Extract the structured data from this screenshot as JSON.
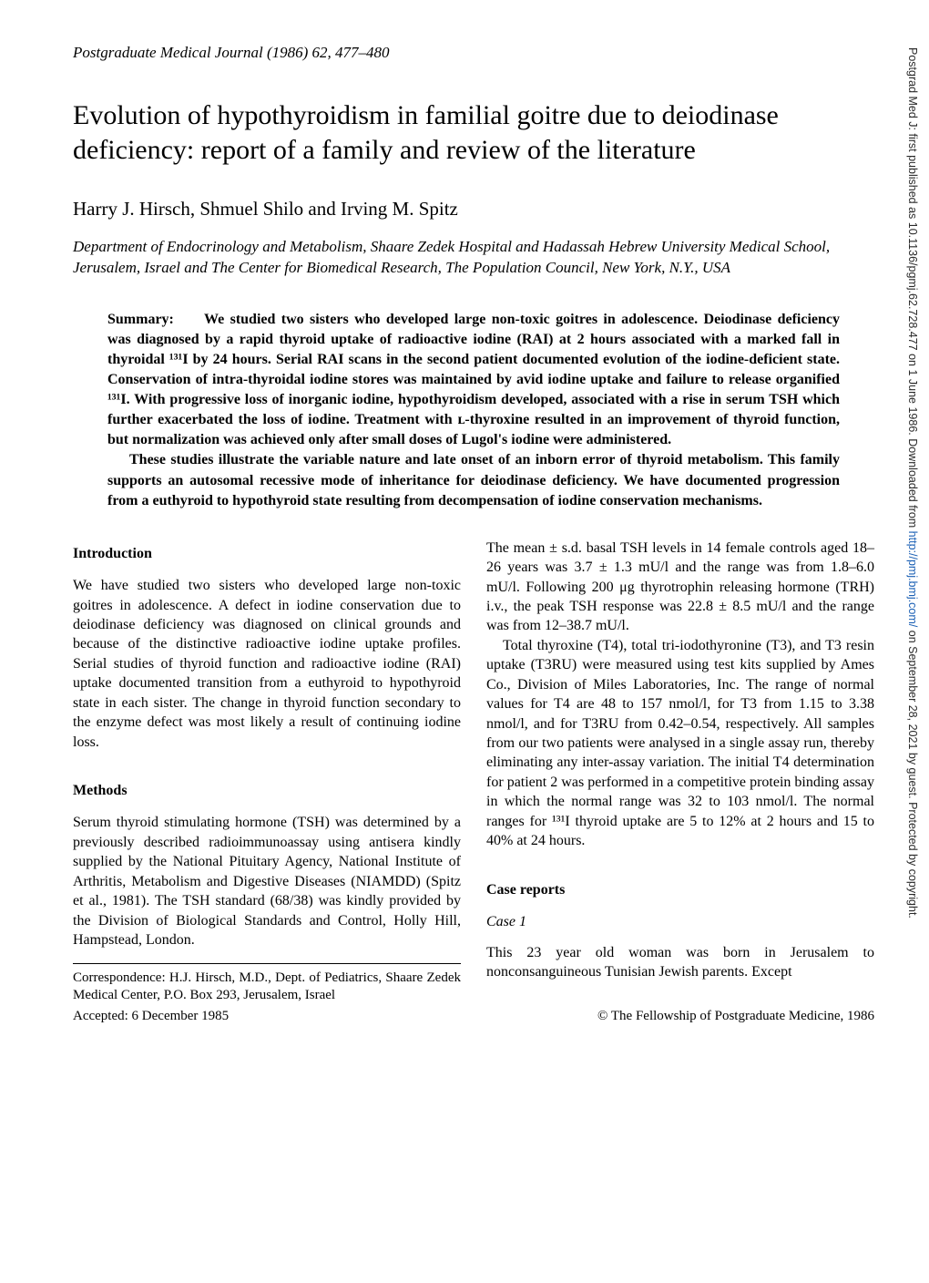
{
  "header": {
    "journal": "Postgraduate Medical Journal (1986) 62, 477–480"
  },
  "title": "Evolution of hypothyroidism in familial goitre due to deiodinase deficiency: report of a family and review of the literature",
  "authors": "Harry J. Hirsch, Shmuel Shilo and Irving M. Spitz",
  "affiliation": "Department of Endocrinology and Metabolism, Shaare Zedek Hospital and Hadassah Hebrew University Medical School, Jerusalem, Israel and The Center for Biomedical Research, The Population Council, New York, N.Y., USA",
  "summary": {
    "lead": "Summary:",
    "p1": "We studied two sisters who developed large non-toxic goitres in adolescence. Deiodinase deficiency was diagnosed by a rapid thyroid uptake of radioactive iodine (RAI) at 2 hours associated with a marked fall in thyroidal ¹³¹I by 24 hours. Serial RAI scans in the second patient documented evolution of the iodine-deficient state. Conservation of intra-thyroidal iodine stores was maintained by avid iodine uptake and failure to release organified ¹³¹I. With progressive loss of inorganic iodine, hypothyroidism developed, associated with a rise in serum TSH which further exacerbated the loss of iodine. Treatment with ʟ-thyroxine resulted in an improvement of thyroid function, but normalization was achieved only after small doses of Lugol's iodine were administered.",
    "p2": "These studies illustrate the variable nature and late onset of an inborn error of thyroid metabolism. This family supports an autosomal recessive mode of inheritance for deiodinase deficiency. We have documented progression from a euthyroid to hypothyroid state resulting from decompensation of iodine conservation mechanisms."
  },
  "left": {
    "intro_heading": "Introduction",
    "intro_body": "We have studied two sisters who developed large non-toxic goitres in adolescence. A defect in iodine conservation due to deiodinase deficiency was diagnosed on clinical grounds and because of the distinctive radioactive iodine uptake profiles. Serial studies of thyroid function and radioactive iodine (RAI) uptake documented transition from a euthyroid to hypothyroid state in each sister. The change in thyroid function secondary to the enzyme defect was most likely a result of continuing iodine loss.",
    "methods_heading": "Methods",
    "methods_body": "Serum thyroid stimulating hormone (TSH) was determined by a previously described radioimmunoassay using antisera kindly supplied by the National Pituitary Agency, National Institute of Arthritis, Metabolism and Digestive Diseases (NIAMDD) (Spitz et al., 1981). The TSH standard (68/38) was kindly provided by the Division of Biological Standards and Control, Holly Hill, Hampstead, London.",
    "correspondence": "Correspondence: H.J. Hirsch, M.D., Dept. of Pediatrics, Shaare Zedek Medical Center, P.O. Box 293, Jerusalem, Israel",
    "accepted": "Accepted: 6 December 1985"
  },
  "right": {
    "p1": "The mean ± s.d. basal TSH levels in 14 female controls aged 18–26 years was 3.7 ± 1.3 mU/l and the range was from 1.8–6.0 mU/l. Following 200 μg thyrotrophin releasing hormone (TRH) i.v., the peak TSH response was 22.8 ± 8.5 mU/l and the range was from 12–38.7 mU/l.",
    "p2": "Total thyroxine (T4), total tri-iodothyronine (T3), and T3 resin uptake (T3RU) were measured using test kits supplied by Ames Co., Division of Miles Laboratories, Inc. The range of normal values for T4 are 48 to 157 nmol/l, for T3 from 1.15 to 3.38 nmol/l, and for T3RU from 0.42–0.54, respectively. All samples from our two patients were analysed in a single assay run, thereby eliminating any inter-assay variation. The initial T4 determination for patient 2 was performed in a competitive protein binding assay in which the normal range was 32 to 103 nmol/l. The normal ranges for ¹³¹I thyroid uptake are 5 to 12% at 2 hours and 15 to 40% at 24 hours.",
    "case_reports_heading": "Case reports",
    "case1_heading": "Case 1",
    "case1_body": "This 23 year old woman was born in Jerusalem to nonconsanguineous Tunisian Jewish parents. Except",
    "copyright": "© The Fellowship of Postgraduate Medicine, 1986"
  },
  "sidebar": {
    "text_pre": "Postgrad Med J: first published as 10.1136/pgmj.62.728.477 on 1 June 1986. Downloaded from ",
    "link": "http://pmj.bmj.com/",
    "text_post": " on September 28, 2021 by guest. Protected by copyright."
  }
}
